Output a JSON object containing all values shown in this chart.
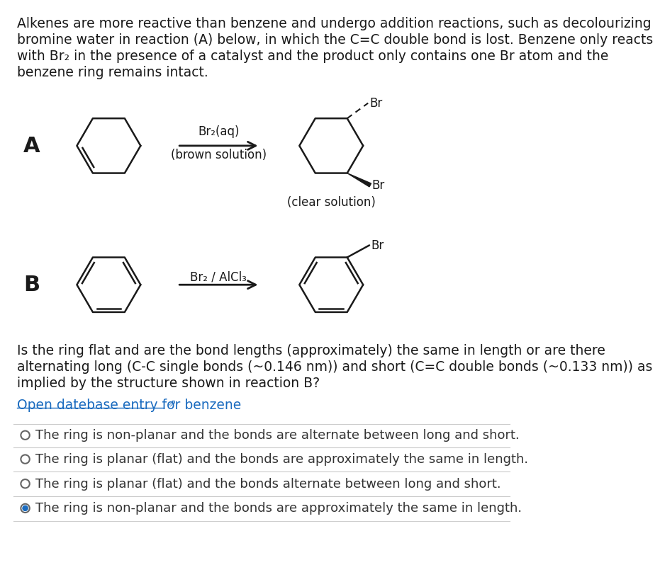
{
  "bg_color": "#ffffff",
  "text_color": "#1a1a1a",
  "intro_lines": [
    "Alkenes are more reactive than benzene and undergo addition reactions, such as decolourizing",
    "bromine water in reaction (A) below, in which the C=C double bond is lost. Benzene only reacts",
    "with Br₂ in the presence of a catalyst and the product only contains one Br atom and the",
    "benzene ring remains intact."
  ],
  "question_lines": [
    "Is the ring flat and are the bond lengths (approximately) the same in length or are there",
    "alternating long (C-C single bonds (~0.146 nm)) and short (C=C double bonds (~0.133 nm)) as",
    "implied by the structure shown in reaction B?"
  ],
  "link_text": "Open datebase entry for benzene",
  "link_color": "#1a6bbf",
  "options": [
    {
      "text": "The ring is non-planar and the bonds are alternate between long and short.",
      "selected": false
    },
    {
      "text": "The ring is planar (flat) and the bonds are approximately the same in length.",
      "selected": false
    },
    {
      "text": "The ring is planar (flat) and the bonds alternate between long and short.",
      "selected": false
    },
    {
      "text": "The ring is non-planar and the bonds are approximately the same in length.",
      "selected": true
    }
  ],
  "label_A": "A",
  "label_B": "B",
  "reaction_A_reagent": "Br₂(aq)",
  "reaction_A_condition": "(brown solution)",
  "reaction_A_product_label": "(clear solution)",
  "reaction_B_reagent": "Br₂ / AlCl₃",
  "Br_label": "Br"
}
